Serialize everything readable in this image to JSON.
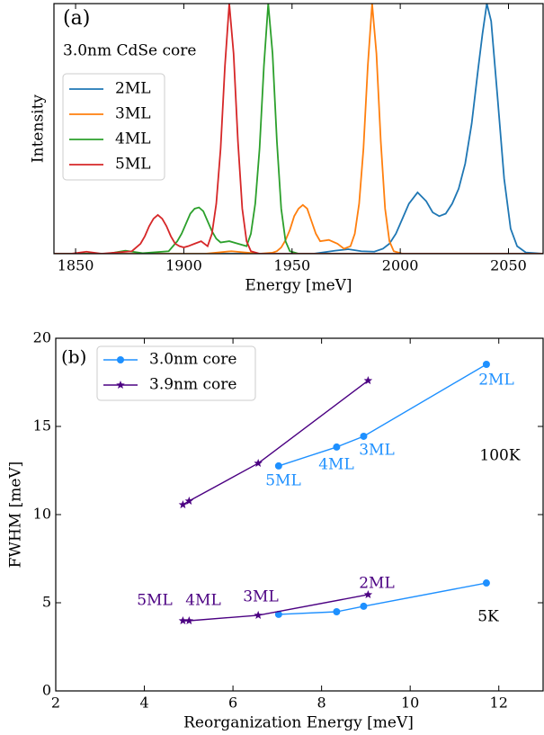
{
  "chart_data": [
    {
      "type": "line",
      "panel_label": "(a)",
      "subtitle": "3.0nm CdSe core",
      "x_label": "Energy [meV]",
      "y_label": "Intensity",
      "xlim": [
        1840,
        2066
      ],
      "ylim": [
        0,
        1
      ],
      "xticks": [
        1850,
        1900,
        1950,
        2000,
        2050
      ],
      "legend": "upper left",
      "series": [
        {
          "name": "2ML",
          "color": "#1f77b4",
          "x": [
            1840,
            1960,
            1970,
            1976,
            1982,
            1988,
            1992,
            1995,
            1998,
            2001,
            2004,
            2008,
            2012,
            2015,
            2018,
            2021,
            2024,
            2027,
            2030,
            2033,
            2036,
            2038,
            2040,
            2042,
            2045,
            2048,
            2051,
            2054,
            2058,
            2066
          ],
          "values": [
            0,
            0,
            0.012,
            0.018,
            0.01,
            0.008,
            0.02,
            0.04,
            0.08,
            0.14,
            0.2,
            0.245,
            0.21,
            0.165,
            0.15,
            0.16,
            0.2,
            0.26,
            0.36,
            0.52,
            0.74,
            0.88,
            1.0,
            0.93,
            0.62,
            0.3,
            0.1,
            0.03,
            0.005,
            0
          ]
        },
        {
          "name": "3ML",
          "color": "#ff7f0e",
          "x": [
            1840,
            1910,
            1922,
            1935,
            1941,
            1943,
            1945,
            1947,
            1949,
            1951,
            1953,
            1955,
            1957,
            1959,
            1961,
            1963,
            1967,
            1971,
            1974,
            1977,
            1979,
            1981,
            1983,
            1985,
            1987,
            1989,
            1991,
            1993,
            1995,
            1997,
            2001,
            2066
          ],
          "values": [
            0,
            0,
            0.01,
            0,
            0.004,
            0.01,
            0.025,
            0.054,
            0.095,
            0.15,
            0.18,
            0.195,
            0.18,
            0.13,
            0.08,
            0.05,
            0.055,
            0.04,
            0.02,
            0.03,
            0.08,
            0.2,
            0.42,
            0.75,
            1.0,
            0.8,
            0.45,
            0.18,
            0.05,
            0.01,
            0,
            0
          ]
        },
        {
          "name": "4ML",
          "color": "#2ca02c",
          "x": [
            1840,
            1865,
            1873,
            1881,
            1893,
            1897,
            1899,
            1901,
            1903,
            1905,
            1907,
            1909,
            1911,
            1913,
            1915,
            1917,
            1921,
            1925,
            1929,
            1931,
            1933,
            1935,
            1937,
            1939,
            1941,
            1943,
            1945,
            1947,
            1949,
            1953,
            2066
          ],
          "values": [
            0,
            0,
            0.012,
            0.002,
            0.01,
            0.05,
            0.08,
            0.12,
            0.16,
            0.18,
            0.185,
            0.17,
            0.13,
            0.09,
            0.06,
            0.045,
            0.05,
            0.04,
            0.03,
            0.08,
            0.2,
            0.42,
            0.75,
            1.0,
            0.8,
            0.45,
            0.18,
            0.05,
            0.01,
            0,
            0
          ]
        },
        {
          "name": "5ML",
          "color": "#d62728",
          "x": [
            1840,
            1848,
            1855,
            1862,
            1876,
            1880,
            1882,
            1884,
            1886,
            1888,
            1890,
            1892,
            1894,
            1896,
            1898,
            1900,
            1902,
            1905,
            1908,
            1911,
            1913,
            1915,
            1917,
            1919,
            1921,
            1923,
            1925,
            1927,
            1929,
            1931,
            1935,
            2066
          ],
          "values": [
            0,
            0,
            0.008,
            0,
            0.01,
            0.04,
            0.07,
            0.11,
            0.14,
            0.155,
            0.14,
            0.11,
            0.07,
            0.04,
            0.03,
            0.025,
            0.03,
            0.04,
            0.05,
            0.03,
            0.08,
            0.2,
            0.42,
            0.75,
            1.0,
            0.8,
            0.45,
            0.18,
            0.05,
            0.01,
            0,
            0
          ]
        }
      ]
    },
    {
      "type": "line",
      "panel_label": "(b)",
      "x_label": "Reorganization Energy [meV]",
      "y_label": "FWHM [meV]",
      "xlim": [
        2,
        13
      ],
      "ylim": [
        0,
        20
      ],
      "xticks": [
        2,
        4,
        6,
        8,
        10,
        12
      ],
      "yticks": [
        0,
        5,
        10,
        15,
        20
      ],
      "legend": "upper left",
      "series": [
        {
          "name": "3.0nm core",
          "color": "#1e90ff",
          "marker": "circle",
          "x": [
            7.03,
            8.34,
            8.95,
            11.72,
            null,
            7.03,
            8.34,
            8.95,
            11.72
          ],
          "values": [
            12.76,
            13.83,
            14.44,
            18.52,
            null,
            4.34,
            4.49,
            4.8,
            6.12
          ]
        },
        {
          "name": "3.9nm core",
          "color": "#4b0082",
          "marker": "star",
          "x": [
            4.87,
            5.01,
            6.57,
            9.05,
            null,
            4.87,
            5.01,
            6.57,
            9.05
          ],
          "values": [
            10.56,
            10.77,
            12.91,
            17.6,
            null,
            3.98,
            3.98,
            4.29,
            5.46
          ]
        }
      ],
      "annotations": [
        {
          "text": "2ML",
          "color": "#1e90ff"
        },
        {
          "text": "3ML",
          "color": "#1e90ff"
        },
        {
          "text": "4ML",
          "color": "#1e90ff"
        },
        {
          "text": "5ML",
          "color": "#1e90ff"
        },
        {
          "text": "100K",
          "color": "#000000"
        },
        {
          "text": "5K",
          "color": "#000000"
        },
        {
          "text": "5ML",
          "color": "#4b0082"
        },
        {
          "text": "4ML",
          "color": "#4b0082"
        },
        {
          "text": "3ML",
          "color": "#4b0082"
        },
        {
          "text": "2ML",
          "color": "#4b0082"
        }
      ]
    }
  ]
}
